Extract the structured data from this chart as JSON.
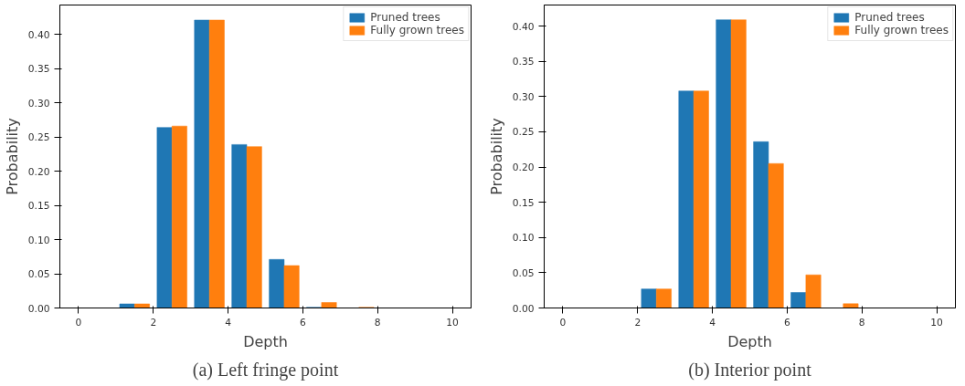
{
  "chart_data": [
    {
      "type": "histogram",
      "xlabel": "Depth",
      "ylabel": "Probability",
      "annotations": [
        "(a) Left fringe point"
      ],
      "bins": [
        0,
        1,
        2,
        3,
        4,
        5,
        6,
        7,
        8,
        9,
        10
      ],
      "series": [
        {
          "name": "Pruned trees",
          "color": "#1f77b4",
          "values": [
            0,
            0.006,
            0.264,
            0.421,
            0.239,
            0.071,
            0.001,
            0,
            0,
            0
          ]
        },
        {
          "name": "Fully grown trees",
          "color": "#ff7f0e",
          "values": [
            0,
            0.006,
            0.266,
            0.421,
            0.236,
            0.062,
            0.008,
            0.001,
            0,
            0
          ]
        }
      ],
      "xlim": [
        -0.5,
        10.5
      ],
      "ylim": [
        0,
        0.443
      ],
      "xticks": [
        0,
        2,
        4,
        6,
        8,
        10
      ],
      "yticks": [
        {
          "value": 0,
          "label": "0.00"
        },
        {
          "value": 0.05,
          "label": "0.05"
        },
        {
          "value": 0.1,
          "label": "0.10"
        },
        {
          "value": 0.15,
          "label": "0.15"
        },
        {
          "value": 0.2,
          "label": "0.20"
        },
        {
          "value": 0.25,
          "label": "0.25"
        },
        {
          "value": 0.3,
          "label": "0.30"
        },
        {
          "value": 0.35,
          "label": "0.35"
        },
        {
          "value": 0.4,
          "label": "0.40"
        }
      ],
      "grid": false,
      "legend": "top right"
    },
    {
      "type": "histogram",
      "xlabel": "Depth",
      "ylabel": "Probability",
      "annotations": [
        "(b) Interior point"
      ],
      "bins": [
        0,
        1,
        2,
        3,
        4,
        5,
        6,
        7,
        8,
        9,
        10
      ],
      "series": [
        {
          "name": "Pruned trees",
          "color": "#1f77b4",
          "values": [
            0,
            0,
            0.027,
            0.308,
            0.409,
            0.236,
            0.022,
            0,
            0,
            0
          ]
        },
        {
          "name": "Fully grown trees",
          "color": "#ff7f0e",
          "values": [
            0,
            0,
            0.027,
            0.308,
            0.409,
            0.205,
            0.047,
            0.006,
            0,
            0
          ]
        }
      ],
      "xlim": [
        -0.5,
        10.5
      ],
      "ylim": [
        0,
        0.43
      ],
      "xticks": [
        0,
        2,
        4,
        6,
        8,
        10
      ],
      "yticks": [
        {
          "value": 0,
          "label": "0.00"
        },
        {
          "value": 0.05,
          "label": "0.05"
        },
        {
          "value": 0.1,
          "label": "0.10"
        },
        {
          "value": 0.15,
          "label": "0.15"
        },
        {
          "value": 0.2,
          "label": "0.20"
        },
        {
          "value": 0.25,
          "label": "0.25"
        },
        {
          "value": 0.3,
          "label": "0.30"
        },
        {
          "value": 0.35,
          "label": "0.35"
        },
        {
          "value": 0.4,
          "label": "0.40"
        }
      ],
      "grid": false,
      "legend": "top right"
    }
  ]
}
